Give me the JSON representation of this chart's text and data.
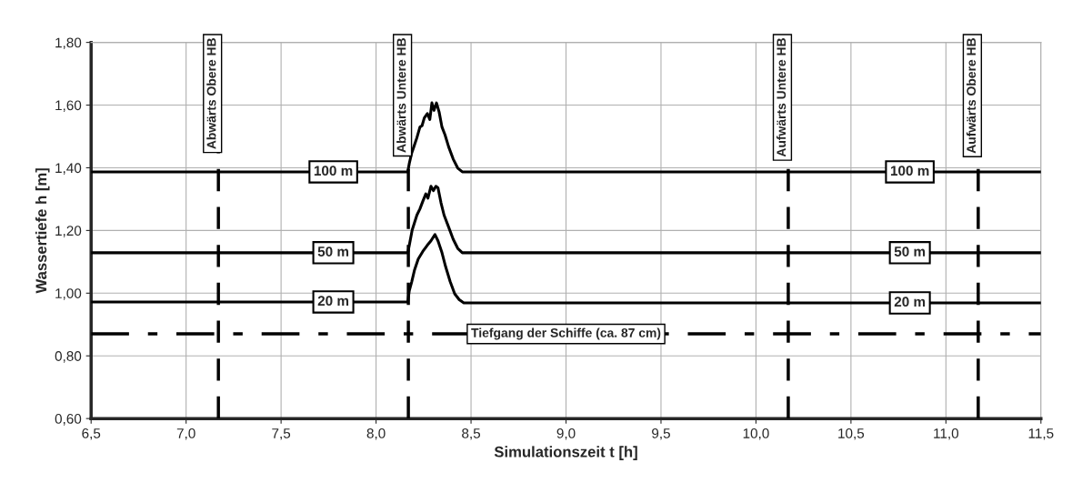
{
  "chart_data": {
    "type": "line",
    "xlabel": "Simulationszeit t [h]",
    "ylabel": "Wassertiefe h [m]",
    "xlim": [
      6.5,
      11.5
    ],
    "ylim": [
      0.6,
      1.8
    ],
    "xticks": [
      {
        "value": 6.5,
        "label": "6,5"
      },
      {
        "value": 7.0,
        "label": "7,0"
      },
      {
        "value": 7.5,
        "label": "7,5"
      },
      {
        "value": 8.0,
        "label": "8,0"
      },
      {
        "value": 8.5,
        "label": "8,5"
      },
      {
        "value": 9.0,
        "label": "9,0"
      },
      {
        "value": 9.5,
        "label": "9,5"
      },
      {
        "value": 10.0,
        "label": "10,0"
      },
      {
        "value": 10.5,
        "label": "10,5"
      },
      {
        "value": 11.0,
        "label": "11,0"
      },
      {
        "value": 11.5,
        "label": "11,5"
      }
    ],
    "yticks": [
      {
        "value": 0.6,
        "label": "0,60"
      },
      {
        "value": 0.8,
        "label": "0,80"
      },
      {
        "value": 1.0,
        "label": "1,00"
      },
      {
        "value": 1.2,
        "label": "1,20"
      },
      {
        "value": 1.4,
        "label": "1,40"
      },
      {
        "value": 1.6,
        "label": "1,60"
      },
      {
        "value": 1.8,
        "label": "1,80"
      }
    ],
    "grid": true,
    "marker": "none",
    "line_style": "solid",
    "legend": false,
    "series": [
      {
        "name": "100 m",
        "color": "#000000",
        "x": [
          6.5,
          8.167,
          8.175,
          8.188,
          8.199,
          8.215,
          8.231,
          8.242,
          8.254,
          8.27,
          8.283,
          8.294,
          8.305,
          8.318,
          8.332,
          8.347,
          8.363,
          8.382,
          8.406,
          8.43,
          8.454,
          11.5
        ],
        "values": [
          1.387,
          1.387,
          1.414,
          1.448,
          1.467,
          1.496,
          1.53,
          1.534,
          1.559,
          1.573,
          1.554,
          1.607,
          1.583,
          1.607,
          1.578,
          1.53,
          1.505,
          1.467,
          1.428,
          1.399,
          1.387,
          1.387
        ]
      },
      {
        "name": "50 m",
        "color": "#000000",
        "x": [
          6.5,
          8.167,
          8.175,
          8.19,
          8.215,
          8.231,
          8.246,
          8.262,
          8.273,
          8.289,
          8.302,
          8.315,
          8.326,
          8.342,
          8.358,
          8.382,
          8.406,
          8.43,
          8.454,
          11.5
        ],
        "values": [
          1.129,
          1.129,
          1.153,
          1.201,
          1.249,
          1.269,
          1.293,
          1.317,
          1.303,
          1.341,
          1.327,
          1.341,
          1.336,
          1.288,
          1.249,
          1.211,
          1.172,
          1.143,
          1.129,
          1.129
        ]
      },
      {
        "name": "20 m",
        "color": "#000000",
        "x": [
          6.5,
          8.167,
          8.175,
          8.188,
          8.203,
          8.222,
          8.246,
          8.27,
          8.289,
          8.31,
          8.326,
          8.347,
          8.366,
          8.39,
          8.414,
          8.438,
          8.462,
          11.5
        ],
        "values": [
          0.972,
          0.972,
          1.008,
          1.037,
          1.075,
          1.109,
          1.133,
          1.153,
          1.167,
          1.187,
          1.167,
          1.129,
          1.085,
          1.037,
          0.998,
          0.979,
          0.969,
          0.969
        ]
      }
    ],
    "ref_lines": [
      {
        "axis": "x",
        "value": 7.17,
        "label": "Abwärts Obere HB",
        "line_style": "dashed",
        "color": "#000000"
      },
      {
        "axis": "x",
        "value": 8.17,
        "label": "Abwärts Untere HB",
        "line_style": "dashed",
        "color": "#000000"
      },
      {
        "axis": "x",
        "value": 10.17,
        "label": "Aufwärts Untere HB",
        "line_style": "dashed",
        "color": "#000000"
      },
      {
        "axis": "x",
        "value": 11.17,
        "label": "Aufwärts Obere HB",
        "line_style": "dashed",
        "color": "#000000"
      },
      {
        "axis": "y",
        "value": 0.87,
        "label": "Tiefgang der Schiffe (ca. 87 cm)",
        "line_style": "dashdot",
        "color": "#000000"
      }
    ]
  }
}
